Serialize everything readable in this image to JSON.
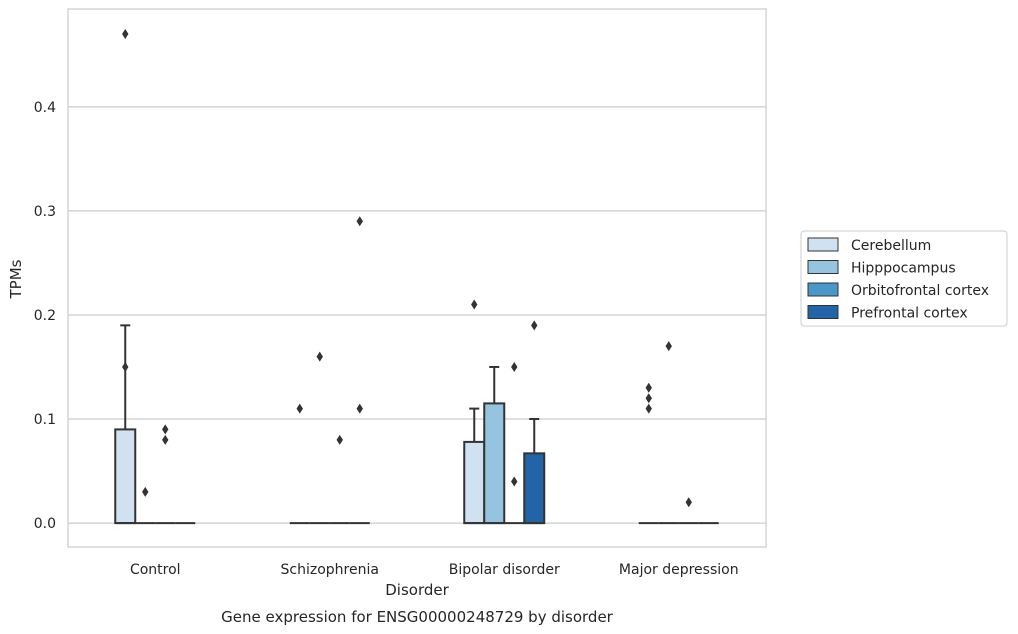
{
  "chart_data": {
    "type": "box",
    "title": "Gene expression for ENSG00000248729 by disorder",
    "xlabel": "Disorder",
    "ylabel": "TPMs",
    "categories": [
      "Control",
      "Schizophrenia",
      "Bipolar disorder",
      "Major depression"
    ],
    "ylim": [
      -0.023,
      0.494
    ],
    "yticks": [
      0.0,
      0.1,
      0.2,
      0.3,
      0.4
    ],
    "ytick_labels": [
      "0.0",
      "0.1",
      "0.2",
      "0.3",
      "0.4"
    ],
    "grid": "horizontal",
    "legend_position": "right",
    "series": [
      {
        "name": "Cerebellum",
        "color": "#d0e1f2",
        "boxes": [
          {
            "q1": 0.0,
            "median": 0.0,
            "q3": 0.09,
            "whisker_low": 0.0,
            "whisker_high": 0.19,
            "outliers": [
              0.47,
              0.15
            ]
          },
          {
            "q1": 0.0,
            "median": 0.0,
            "q3": 0.0,
            "whisker_low": 0.0,
            "whisker_high": 0.0,
            "outliers": [
              0.11
            ]
          },
          {
            "q1": 0.0,
            "median": 0.0,
            "q3": 0.078,
            "whisker_low": 0.0,
            "whisker_high": 0.11,
            "outliers": [
              0.21
            ]
          },
          {
            "q1": 0.0,
            "median": 0.0,
            "q3": 0.0,
            "whisker_low": 0.0,
            "whisker_high": 0.0,
            "outliers": [
              0.13,
              0.12,
              0.11
            ]
          }
        ]
      },
      {
        "name": "Hipppocampus",
        "color": "#94c4df",
        "boxes": [
          {
            "q1": 0.0,
            "median": 0.0,
            "q3": 0.0,
            "whisker_low": 0.0,
            "whisker_high": 0.0,
            "outliers": [
              0.03
            ]
          },
          {
            "q1": 0.0,
            "median": 0.0,
            "q3": 0.0,
            "whisker_low": 0.0,
            "whisker_high": 0.0,
            "outliers": [
              0.16
            ]
          },
          {
            "q1": 0.0,
            "median": 0.0,
            "q3": 0.115,
            "whisker_low": 0.0,
            "whisker_high": 0.15,
            "outliers": []
          },
          {
            "q1": 0.0,
            "median": 0.0,
            "q3": 0.0,
            "whisker_low": 0.0,
            "whisker_high": 0.0,
            "outliers": [
              0.17
            ]
          }
        ]
      },
      {
        "name": "Orbitofrontal cortex",
        "color": "#4a98c9",
        "boxes": [
          {
            "q1": 0.0,
            "median": 0.0,
            "q3": 0.0,
            "whisker_low": 0.0,
            "whisker_high": 0.0,
            "outliers": [
              0.09,
              0.08
            ]
          },
          {
            "q1": 0.0,
            "median": 0.0,
            "q3": 0.0,
            "whisker_low": 0.0,
            "whisker_high": 0.0,
            "outliers": [
              0.08
            ]
          },
          {
            "q1": 0.0,
            "median": 0.0,
            "q3": 0.0,
            "whisker_low": 0.0,
            "whisker_high": 0.0,
            "outliers": [
              0.15,
              0.04
            ]
          },
          {
            "q1": 0.0,
            "median": 0.0,
            "q3": 0.0,
            "whisker_low": 0.0,
            "whisker_high": 0.0,
            "outliers": [
              0.02
            ]
          }
        ]
      },
      {
        "name": "Prefrontal cortex",
        "color": "#2264a8",
        "boxes": [
          {
            "q1": 0.0,
            "median": 0.0,
            "q3": 0.0,
            "whisker_low": 0.0,
            "whisker_high": 0.0,
            "outliers": []
          },
          {
            "q1": 0.0,
            "median": 0.0,
            "q3": 0.0,
            "whisker_low": 0.0,
            "whisker_high": 0.0,
            "outliers": [
              0.29,
              0.11
            ]
          },
          {
            "q1": 0.0,
            "median": 0.0,
            "q3": 0.067,
            "whisker_low": 0.0,
            "whisker_high": 0.1,
            "outliers": [
              0.19
            ]
          },
          {
            "q1": 0.0,
            "median": 0.0,
            "q3": 0.0,
            "whisker_low": 0.0,
            "whisker_high": 0.0,
            "outliers": []
          }
        ]
      }
    ]
  }
}
